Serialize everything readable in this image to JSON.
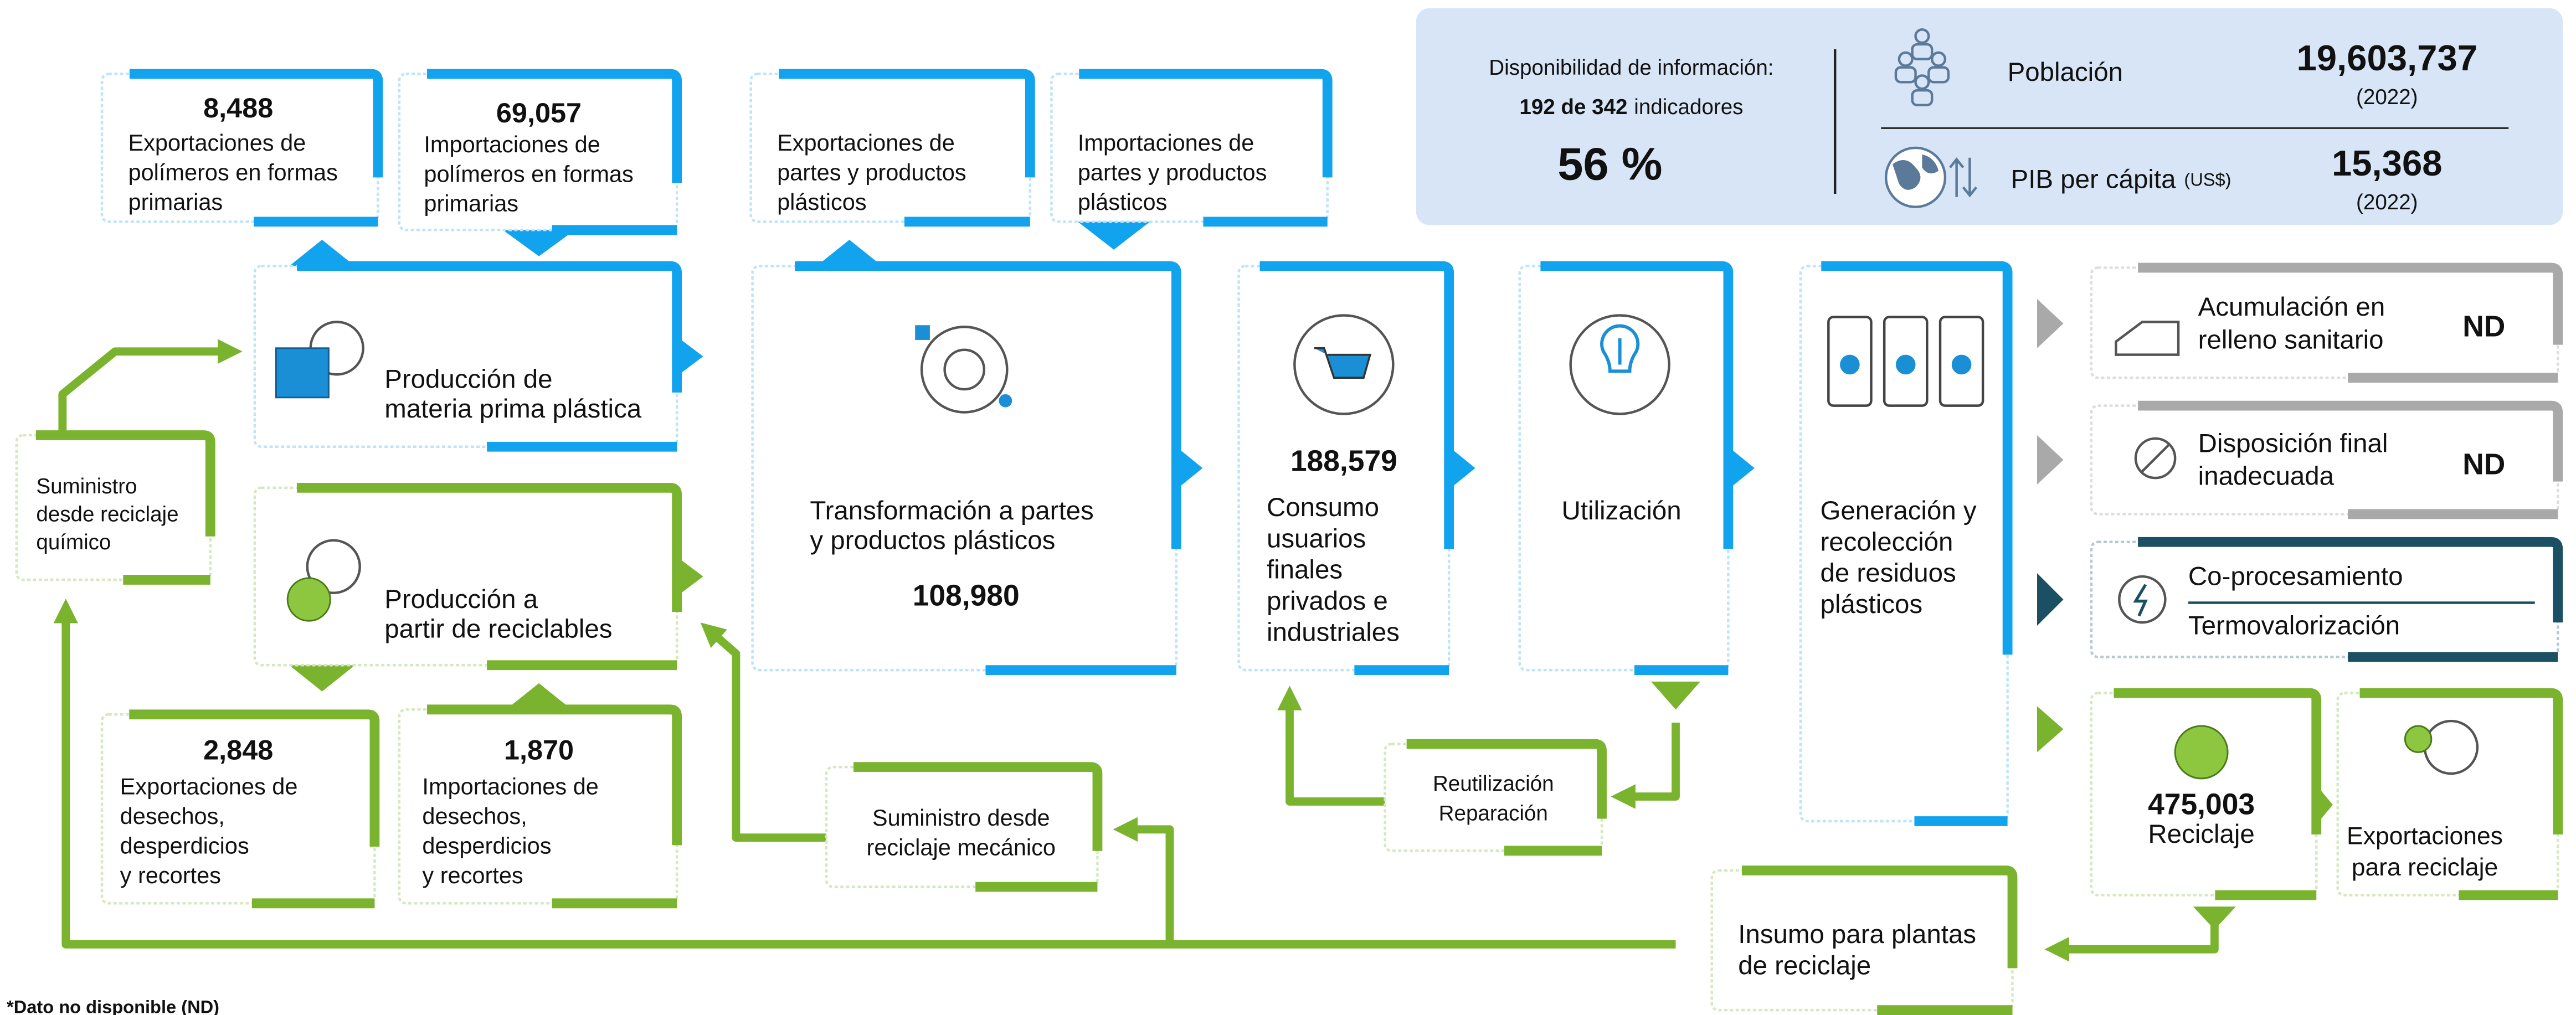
{
  "info": {
    "label": "Disponibilidad de información:",
    "indicators": "192 de 342",
    "indicators_unit": "indicadores",
    "percent": "56 %",
    "population": {
      "label": "Población",
      "value": "19,603,737",
      "year": "(2022)"
    },
    "gdp": {
      "label": "PIB per cápita",
      "unit": "(US$)",
      "value": "15,368",
      "year": "(2022)"
    }
  },
  "boxes": [
    {
      "value": "8,488",
      "lines": [
        "Exportaciones de",
        "polímeros en formas",
        "primarias"
      ]
    },
    {
      "value": "69,057",
      "lines": [
        "Importaciones de",
        "polímeros en formas",
        "primarias"
      ]
    },
    {
      "lines": [
        "Exportaciones de",
        "partes y productos",
        "plásticos"
      ]
    },
    {
      "lines": [
        "Importaciones de",
        "partes y productos",
        "plásticos"
      ]
    },
    {
      "lines": [
        "Producción de",
        "materia prima plástica"
      ]
    },
    {
      "lines": [
        "Producción a",
        "partir de reciclables"
      ]
    },
    {
      "value": "108,980",
      "lines": [
        "Transformación a partes",
        "y productos plásticos"
      ]
    },
    {
      "value": "188,579",
      "lines": [
        "Consumo",
        "usuarios",
        "finales",
        "privados e",
        "industriales"
      ]
    },
    {
      "lines": [
        "Utilización"
      ]
    },
    {
      "lines": [
        "Generación y",
        "recolección",
        "de residuos",
        "plásticos"
      ]
    },
    {
      "value": "ND",
      "lines": [
        "Acumulación en",
        "relleno sanitario"
      ]
    },
    {
      "value": "ND",
      "lines": [
        "Disposición final",
        "inadecuada"
      ]
    },
    {
      "lines": [
        "Co-procesamiento",
        "Termovalorización"
      ]
    },
    {
      "value": "475,003",
      "lines": [
        "Reciclaje"
      ]
    },
    {
      "lines": [
        "Exportaciones",
        "para reciclaje"
      ]
    },
    {
      "lines": [
        "Insumo para plantas",
        "de reciclaje"
      ]
    },
    {
      "lines": [
        "Suministro desde",
        "reciclaje mecánico"
      ]
    },
    {
      "lines": [
        "Reutilización",
        "Reparación"
      ]
    },
    {
      "lines": [
        "Suministro",
        "desde reciclaje",
        "químico"
      ]
    },
    {
      "value": "2,848",
      "lines": [
        "Exportaciones de",
        "desechos,",
        "desperdicios",
        "y recortes"
      ]
    },
    {
      "value": "1,870",
      "lines": [
        "Importaciones de",
        "desechos,",
        "desperdicios",
        "y recortes"
      ]
    }
  ],
  "footnote": "*Dato no disponible (ND)"
}
